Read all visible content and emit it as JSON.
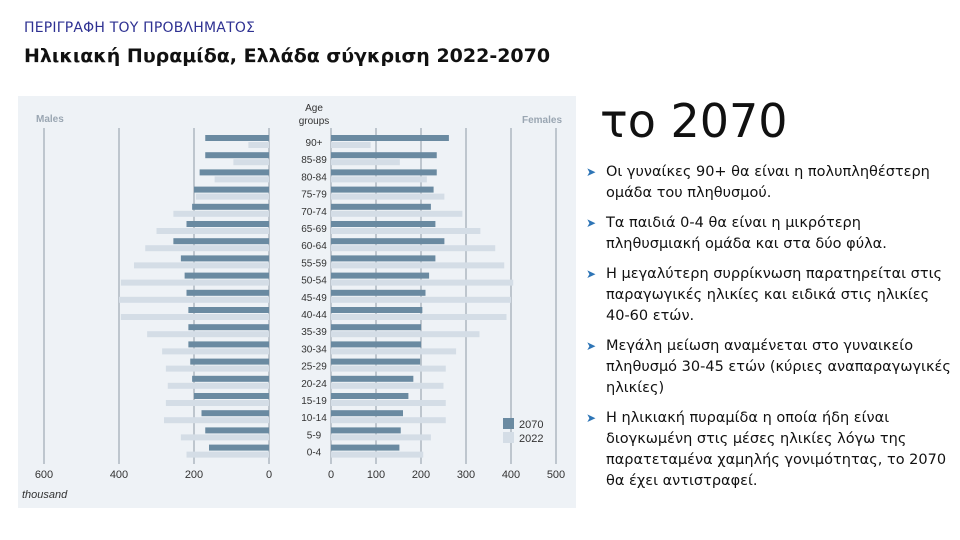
{
  "header": {
    "kicker": "ΠΕΡΙΓΡΑΦΗ ΤΟΥ ΠΡΟΒΛΗΜΑΤΟΣ",
    "title": "Ηλικιακή Πυραμίδα, Ελλάδα σύγκριση 2022-2070"
  },
  "side": {
    "year": "το 2070",
    "bullet_icon": "arrow-right-icon",
    "points": [
      "Οι γυναίκες 90+ θα είναι η πολυπληθέστερη ομάδα του πληθυσμού.",
      "Τα παιδιά 0-4 θα είναι η μικρότερη πληθυσμιακή ομάδα και στα δύο φύλα.",
      "Η μεγαλύτερη συρρίκνωση παρατηρείται στις παραγωγικές ηλικίες και ειδικά στις ηλικίες 40-60 ετών.",
      "Μεγάλη μείωση αναμένεται στο γυναικείο πληθυσμό 30-45 ετών (κύριες αναπαραγωγικές ηλικίες)",
      "Η ηλικιακή πυραμίδα η οποία ήδη είναι διογκωμένη στις μέσες ηλικίες λόγω της παρατεταμένα χαμηλής γονιμότητας, το 2070 θα έχει αντιστραφεί."
    ]
  },
  "chart_data": {
    "type": "bar",
    "orientation": "horizontal-pyramid",
    "left_label": "Males",
    "right_label": "Females",
    "center_label_line1": "Age",
    "center_label_line2": "groups",
    "x_unit_label": "thousand",
    "male_ticks": [
      "600",
      "400",
      "200",
      "0"
    ],
    "female_ticks": [
      "0",
      "100",
      "200",
      "300",
      "400",
      "500"
    ],
    "male_xlim": [
      0,
      600
    ],
    "female_xlim": [
      0,
      500
    ],
    "legend_position": "bottom-right",
    "categories": [
      "90+",
      "85-89",
      "80-84",
      "75-79",
      "70-74",
      "65-69",
      "60-64",
      "55-59",
      "50-54",
      "45-49",
      "40-44",
      "35-39",
      "30-34",
      "25-29",
      "20-24",
      "15-19",
      "10-14",
      "5-9",
      "0-4"
    ],
    "series": [
      {
        "name": "2070",
        "color": "#6a8aa1",
        "males": [
          170,
          170,
          185,
          200,
          205,
          220,
          255,
          235,
          225,
          220,
          215,
          215,
          215,
          210,
          205,
          200,
          180,
          170,
          160
        ],
        "females": [
          262,
          235,
          235,
          228,
          222,
          232,
          252,
          232,
          218,
          210,
          203,
          200,
          200,
          198,
          183,
          172,
          160,
          155,
          152
        ]
      },
      {
        "name": "2022",
        "color": "#d4dde6",
        "males": [
          55,
          95,
          145,
          195,
          255,
          300,
          330,
          360,
          395,
          400,
          395,
          325,
          285,
          275,
          270,
          275,
          280,
          235,
          220
        ],
        "females": [
          88,
          153,
          213,
          252,
          292,
          332,
          365,
          385,
          405,
          400,
          390,
          330,
          278,
          255,
          250,
          255,
          255,
          222,
          205
        ]
      }
    ]
  }
}
